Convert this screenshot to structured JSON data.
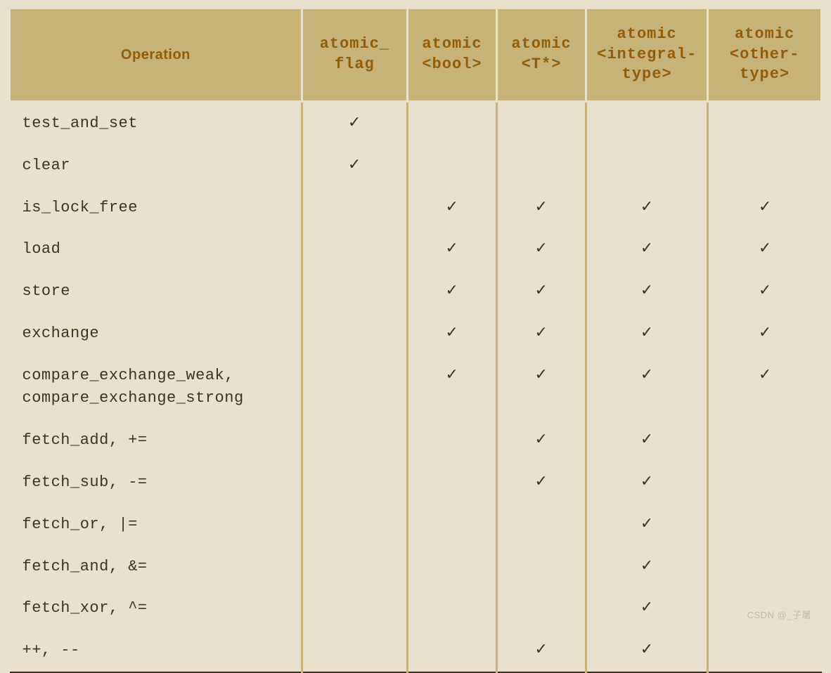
{
  "table": {
    "type": "table",
    "background_color": "#e8e1cd",
    "header_bg": "#c7b277",
    "header_text_color": "#915d09",
    "body_text_color": "#3e3322",
    "border_color": "#c7b277",
    "bottom_rule_color": "#3e3322",
    "font_family": "Courier New",
    "header_fontsize": 22,
    "body_fontsize": 22,
    "check_glyph": "✓",
    "col_widths_pct": [
      36,
      13,
      11,
      11,
      15,
      14
    ],
    "columns": [
      "Operation",
      "atomic_\nflag",
      "atomic\n<bool>",
      "atomic\n<T*>",
      "atomic\n<integral-\ntype>",
      "atomic\n<other-\ntype>"
    ],
    "rows": [
      {
        "op": "test_and_set",
        "cells": [
          true,
          false,
          false,
          false,
          false
        ]
      },
      {
        "op": "clear",
        "cells": [
          true,
          false,
          false,
          false,
          false
        ]
      },
      {
        "op": "is_lock_free",
        "cells": [
          false,
          true,
          true,
          true,
          true
        ]
      },
      {
        "op": "load",
        "cells": [
          false,
          true,
          true,
          true,
          true
        ]
      },
      {
        "op": "store",
        "cells": [
          false,
          true,
          true,
          true,
          true
        ]
      },
      {
        "op": "exchange",
        "cells": [
          false,
          true,
          true,
          true,
          true
        ]
      },
      {
        "op": "compare_exchange_weak,\ncompare_exchange_strong",
        "cells": [
          false,
          true,
          true,
          true,
          true
        ]
      },
      {
        "op": "fetch_add, +=",
        "cells": [
          false,
          false,
          true,
          true,
          false
        ]
      },
      {
        "op": "fetch_sub, -=",
        "cells": [
          false,
          false,
          true,
          true,
          false
        ]
      },
      {
        "op": "fetch_or, |=",
        "cells": [
          false,
          false,
          false,
          true,
          false
        ]
      },
      {
        "op": "fetch_and, &=",
        "cells": [
          false,
          false,
          false,
          true,
          false
        ]
      },
      {
        "op": "fetch_xor, ^=",
        "cells": [
          false,
          false,
          false,
          true,
          false
        ]
      },
      {
        "op": "++, --",
        "cells": [
          false,
          false,
          true,
          true,
          false
        ]
      }
    ]
  },
  "watermark": "CSDN @_子屠"
}
